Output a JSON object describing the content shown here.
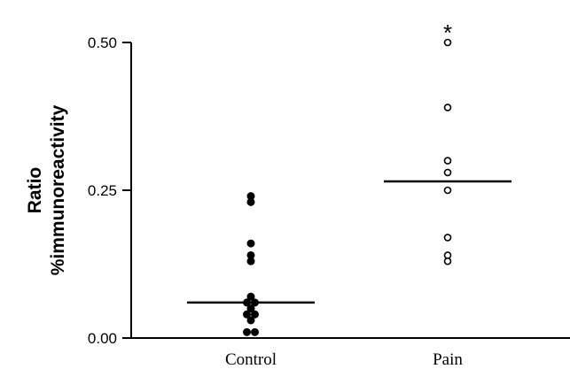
{
  "chart_data": {
    "type": "scatter",
    "ylabel_line1": "Ratio",
    "ylabel_line2": "%immunoreactivity",
    "ylim": [
      0,
      0.5
    ],
    "yticks": [
      "0.00",
      "0.25",
      "0.50"
    ],
    "categories": [
      "Control",
      "Pain"
    ],
    "series": [
      {
        "category": "Control",
        "marker": "filled",
        "points": [
          0.24,
          0.23,
          0.16,
          0.14,
          0.13,
          0.07,
          0.06,
          0.06,
          0.05,
          0.04,
          0.04,
          0.03,
          0.01,
          0.01
        ],
        "median": 0.06
      },
      {
        "category": "Pain",
        "marker": "open",
        "points": [
          0.5,
          0.39,
          0.3,
          0.28,
          0.25,
          0.17,
          0.14,
          0.13
        ],
        "median": 0.265
      }
    ],
    "annotation": {
      "text": "*",
      "category": "Pain"
    },
    "grid": false,
    "legend": "none"
  }
}
